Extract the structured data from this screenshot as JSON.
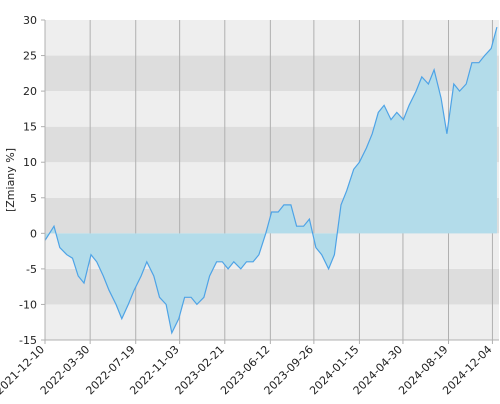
{
  "chart_data": {
    "type": "area",
    "ylabel": "[Zmiany %]",
    "x": [
      "2021-12-10",
      "2022-01-01",
      "2022-01-15",
      "2022-02-01",
      "2022-02-15",
      "2022-03-01",
      "2022-03-15",
      "2022-04-01",
      "2022-04-15",
      "2022-05-01",
      "2022-05-15",
      "2022-06-01",
      "2022-06-15",
      "2022-07-01",
      "2022-07-15",
      "2022-08-01",
      "2022-08-15",
      "2022-09-01",
      "2022-09-15",
      "2022-10-01",
      "2022-10-15",
      "2022-11-01",
      "2022-11-15",
      "2022-12-01",
      "2022-12-15",
      "2023-01-01",
      "2023-01-15",
      "2023-02-01",
      "2023-02-15",
      "2023-03-01",
      "2023-03-15",
      "2023-04-01",
      "2023-04-15",
      "2023-05-01",
      "2023-05-15",
      "2023-06-01",
      "2023-06-15",
      "2023-07-01",
      "2023-07-15",
      "2023-08-01",
      "2023-08-15",
      "2023-09-01",
      "2023-09-15",
      "2023-10-01",
      "2023-10-15",
      "2023-11-01",
      "2023-11-15",
      "2023-12-01",
      "2023-12-15",
      "2024-01-01",
      "2024-01-15",
      "2024-02-01",
      "2024-02-15",
      "2024-03-01",
      "2024-03-15",
      "2024-04-01",
      "2024-04-15",
      "2024-05-01",
      "2024-05-15",
      "2024-06-01",
      "2024-06-15",
      "2024-07-01",
      "2024-07-15",
      "2024-08-01",
      "2024-08-15",
      "2024-09-01",
      "2024-09-15",
      "2024-10-01",
      "2024-10-15",
      "2024-11-01",
      "2024-11-15",
      "2024-12-01",
      "2024-12-15"
    ],
    "series": [
      {
        "color": "#4ea3e6",
        "fill": "#b3dcea",
        "values": [
          -1,
          1,
          -2,
          -3,
          -3.5,
          -6,
          -7,
          -3,
          -4,
          -6,
          -8,
          -10,
          -12,
          -10,
          -8,
          -6,
          -4,
          -6,
          -9,
          -10,
          -14,
          -12,
          -9,
          -9,
          -10,
          -9,
          -6,
          -4,
          -4,
          -5,
          -4,
          -5,
          -4,
          -4,
          -3,
          0,
          3,
          3,
          4,
          4,
          1,
          1,
          2,
          -2,
          -3,
          -5,
          -3,
          4,
          6,
          9,
          10,
          12,
          14,
          17,
          18,
          16,
          17,
          16,
          18,
          20,
          22,
          21,
          23,
          19,
          14,
          21,
          20,
          21,
          24,
          24,
          25,
          26,
          29
        ]
      }
    ],
    "xlim": [
      "2021-12-10",
      "2024-12-20"
    ],
    "xticks": [
      "2021-12-10",
      "2022-03-30",
      "2022-07-19",
      "2022-11-03",
      "2023-02-21",
      "2023-06-12",
      "2023-09-26",
      "2024-01-15",
      "2024-04-30",
      "2024-08-19",
      "2024-12-04"
    ],
    "ylim": [
      -15,
      30
    ],
    "yticks": [
      -15,
      -10,
      -5,
      0,
      5,
      10,
      15,
      20,
      25,
      30
    ],
    "band_colors": [
      "#eeeeee",
      "#dddddd"
    ],
    "grid_color": "#b0b0b0"
  }
}
